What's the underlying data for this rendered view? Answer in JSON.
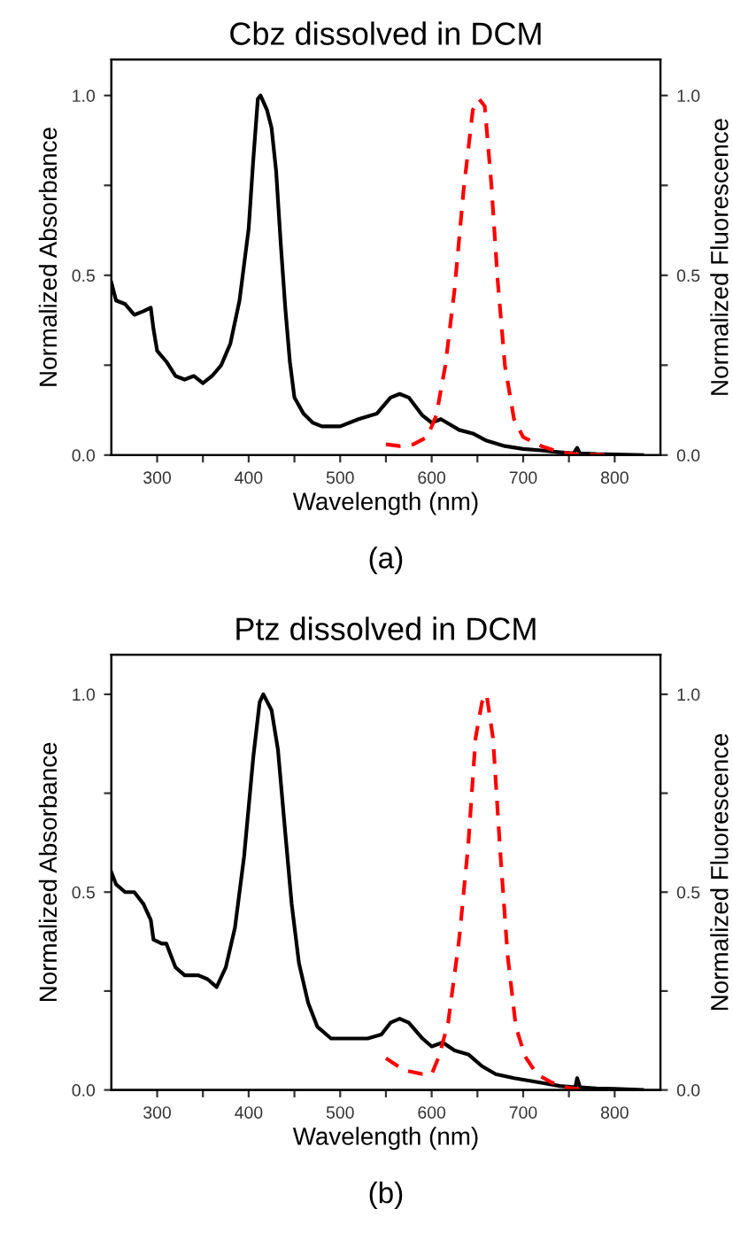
{
  "chart_data": [
    {
      "type": "line",
      "title": "Cbz dissolved in DCM",
      "xlabel": "Wavelength (nm)",
      "ylabel": "Normalized Absorbance",
      "y2label": "Normalized Fluorescence",
      "annotations": [
        "(a)"
      ],
      "xlim": [
        250,
        850
      ],
      "xticks": [
        300,
        {
          "value": 350,
          "label": null
        },
        400,
        {
          "value": 450,
          "label": null
        },
        500,
        {
          "value": 550,
          "label": null
        },
        600,
        {
          "value": 650,
          "label": null
        },
        700,
        {
          "value": 750,
          "label": null
        },
        800
      ],
      "ylim": [
        0,
        1.1
      ],
      "yticks": [
        {
          "value": 0,
          "label": "0.0"
        },
        {
          "value": 0.25,
          "label": null
        },
        {
          "value": 0.5,
          "label": "0.5"
        },
        {
          "value": 0.75,
          "label": null
        },
        {
          "value": 1.0,
          "label": "1.0"
        }
      ],
      "y2lim": [
        0,
        1.1
      ],
      "y2ticks": [
        {
          "value": 0,
          "label": "0.0"
        },
        {
          "value": 0.25,
          "label": null
        },
        {
          "value": 0.5,
          "label": "0.5"
        },
        {
          "value": 0.75,
          "label": null
        },
        {
          "value": 1.0,
          "label": "1.0"
        }
      ],
      "grid": false,
      "legend": false,
      "series": [
        {
          "color": "#000000",
          "line_style": "solid",
          "axis": "y",
          "x": [
            250,
            255,
            265,
            275,
            285,
            293,
            296,
            300,
            310,
            320,
            330,
            340,
            350,
            360,
            370,
            380,
            390,
            400,
            405,
            410,
            413,
            420,
            425,
            430,
            435,
            440,
            445,
            450,
            460,
            470,
            480,
            500,
            520,
            540,
            555,
            565,
            575,
            590,
            600,
            610,
            620,
            630,
            645,
            660,
            680,
            700,
            720,
            740,
            755,
            759,
            762,
            780,
            800,
            830
          ],
          "values": [
            0.48,
            0.43,
            0.42,
            0.39,
            0.4,
            0.41,
            0.35,
            0.29,
            0.26,
            0.22,
            0.21,
            0.22,
            0.2,
            0.22,
            0.25,
            0.31,
            0.43,
            0.63,
            0.82,
            0.99,
            1.0,
            0.96,
            0.91,
            0.79,
            0.59,
            0.41,
            0.26,
            0.16,
            0.115,
            0.09,
            0.08,
            0.08,
            0.1,
            0.115,
            0.16,
            0.17,
            0.16,
            0.11,
            0.09,
            0.1,
            0.085,
            0.07,
            0.06,
            0.04,
            0.025,
            0.017,
            0.013,
            0.008,
            0.005,
            0.02,
            0.005,
            0.003,
            0.002,
            0
          ]
        },
        {
          "color": "#ff0000",
          "line_style": "dashed",
          "axis": "y2",
          "x": [
            550,
            565,
            580,
            595,
            605,
            615,
            625,
            635,
            645,
            652,
            658,
            665,
            672,
            680,
            690,
            700,
            720,
            740,
            760,
            800
          ],
          "values": [
            0.03,
            0.025,
            0.03,
            0.05,
            0.11,
            0.25,
            0.46,
            0.74,
            0.96,
            0.99,
            0.97,
            0.76,
            0.49,
            0.25,
            0.1,
            0.05,
            0.025,
            0.008,
            0.002,
            0
          ]
        }
      ]
    },
    {
      "type": "line",
      "title": "Ptz dissolved in DCM",
      "xlabel": "Wavelength (nm)",
      "ylabel": "Normalized Absorbance",
      "y2label": "Normalized Fluorescence",
      "annotations": [
        "(b)"
      ],
      "xlim": [
        250,
        850
      ],
      "xticks": [
        300,
        {
          "value": 350,
          "label": null
        },
        400,
        {
          "value": 450,
          "label": null
        },
        500,
        {
          "value": 550,
          "label": null
        },
        600,
        {
          "value": 650,
          "label": null
        },
        700,
        {
          "value": 750,
          "label": null
        },
        800
      ],
      "ylim": [
        0,
        1.1
      ],
      "yticks": [
        {
          "value": 0,
          "label": "0.0"
        },
        {
          "value": 0.25,
          "label": null
        },
        {
          "value": 0.5,
          "label": "0.5"
        },
        {
          "value": 0.75,
          "label": null
        },
        {
          "value": 1.0,
          "label": "1.0"
        }
      ],
      "y2lim": [
        0,
        1.1
      ],
      "y2ticks": [
        {
          "value": 0,
          "label": "0.0"
        },
        {
          "value": 0.25,
          "label": null
        },
        {
          "value": 0.5,
          "label": "0.5"
        },
        {
          "value": 0.75,
          "label": null
        },
        {
          "value": 1.0,
          "label": "1.0"
        }
      ],
      "grid": false,
      "legend": false,
      "series": [
        {
          "color": "#000000",
          "line_style": "solid",
          "axis": "y",
          "x": [
            250,
            255,
            265,
            275,
            285,
            293,
            296,
            305,
            310,
            315,
            320,
            330,
            345,
            355,
            365,
            375,
            385,
            395,
            405,
            412,
            416,
            425,
            432,
            440,
            447,
            455,
            465,
            475,
            490,
            510,
            530,
            545,
            555,
            565,
            575,
            590,
            600,
            612,
            625,
            640,
            655,
            670,
            690,
            720,
            740,
            757,
            759,
            762,
            780,
            800,
            830
          ],
          "values": [
            0.55,
            0.52,
            0.5,
            0.5,
            0.47,
            0.43,
            0.38,
            0.37,
            0.37,
            0.34,
            0.31,
            0.29,
            0.29,
            0.28,
            0.26,
            0.31,
            0.41,
            0.59,
            0.84,
            0.98,
            1.0,
            0.96,
            0.86,
            0.65,
            0.47,
            0.32,
            0.22,
            0.16,
            0.13,
            0.13,
            0.13,
            0.14,
            0.17,
            0.18,
            0.17,
            0.13,
            0.11,
            0.12,
            0.1,
            0.09,
            0.06,
            0.04,
            0.03,
            0.018,
            0.01,
            0.007,
            0.03,
            0.007,
            0.004,
            0.003,
            0
          ]
        },
        {
          "color": "#ff0000",
          "line_style": "dashed",
          "axis": "y2",
          "x": [
            550,
            570,
            590,
            600,
            608,
            618,
            630,
            640,
            648,
            655,
            660,
            667,
            675,
            683,
            692,
            702,
            715,
            730,
            750,
            770
          ],
          "values": [
            0.08,
            0.05,
            0.04,
            0.04,
            0.085,
            0.17,
            0.38,
            0.62,
            0.89,
            0.98,
            1.0,
            0.89,
            0.6,
            0.34,
            0.16,
            0.085,
            0.04,
            0.02,
            0.005,
            0
          ]
        }
      ]
    }
  ]
}
